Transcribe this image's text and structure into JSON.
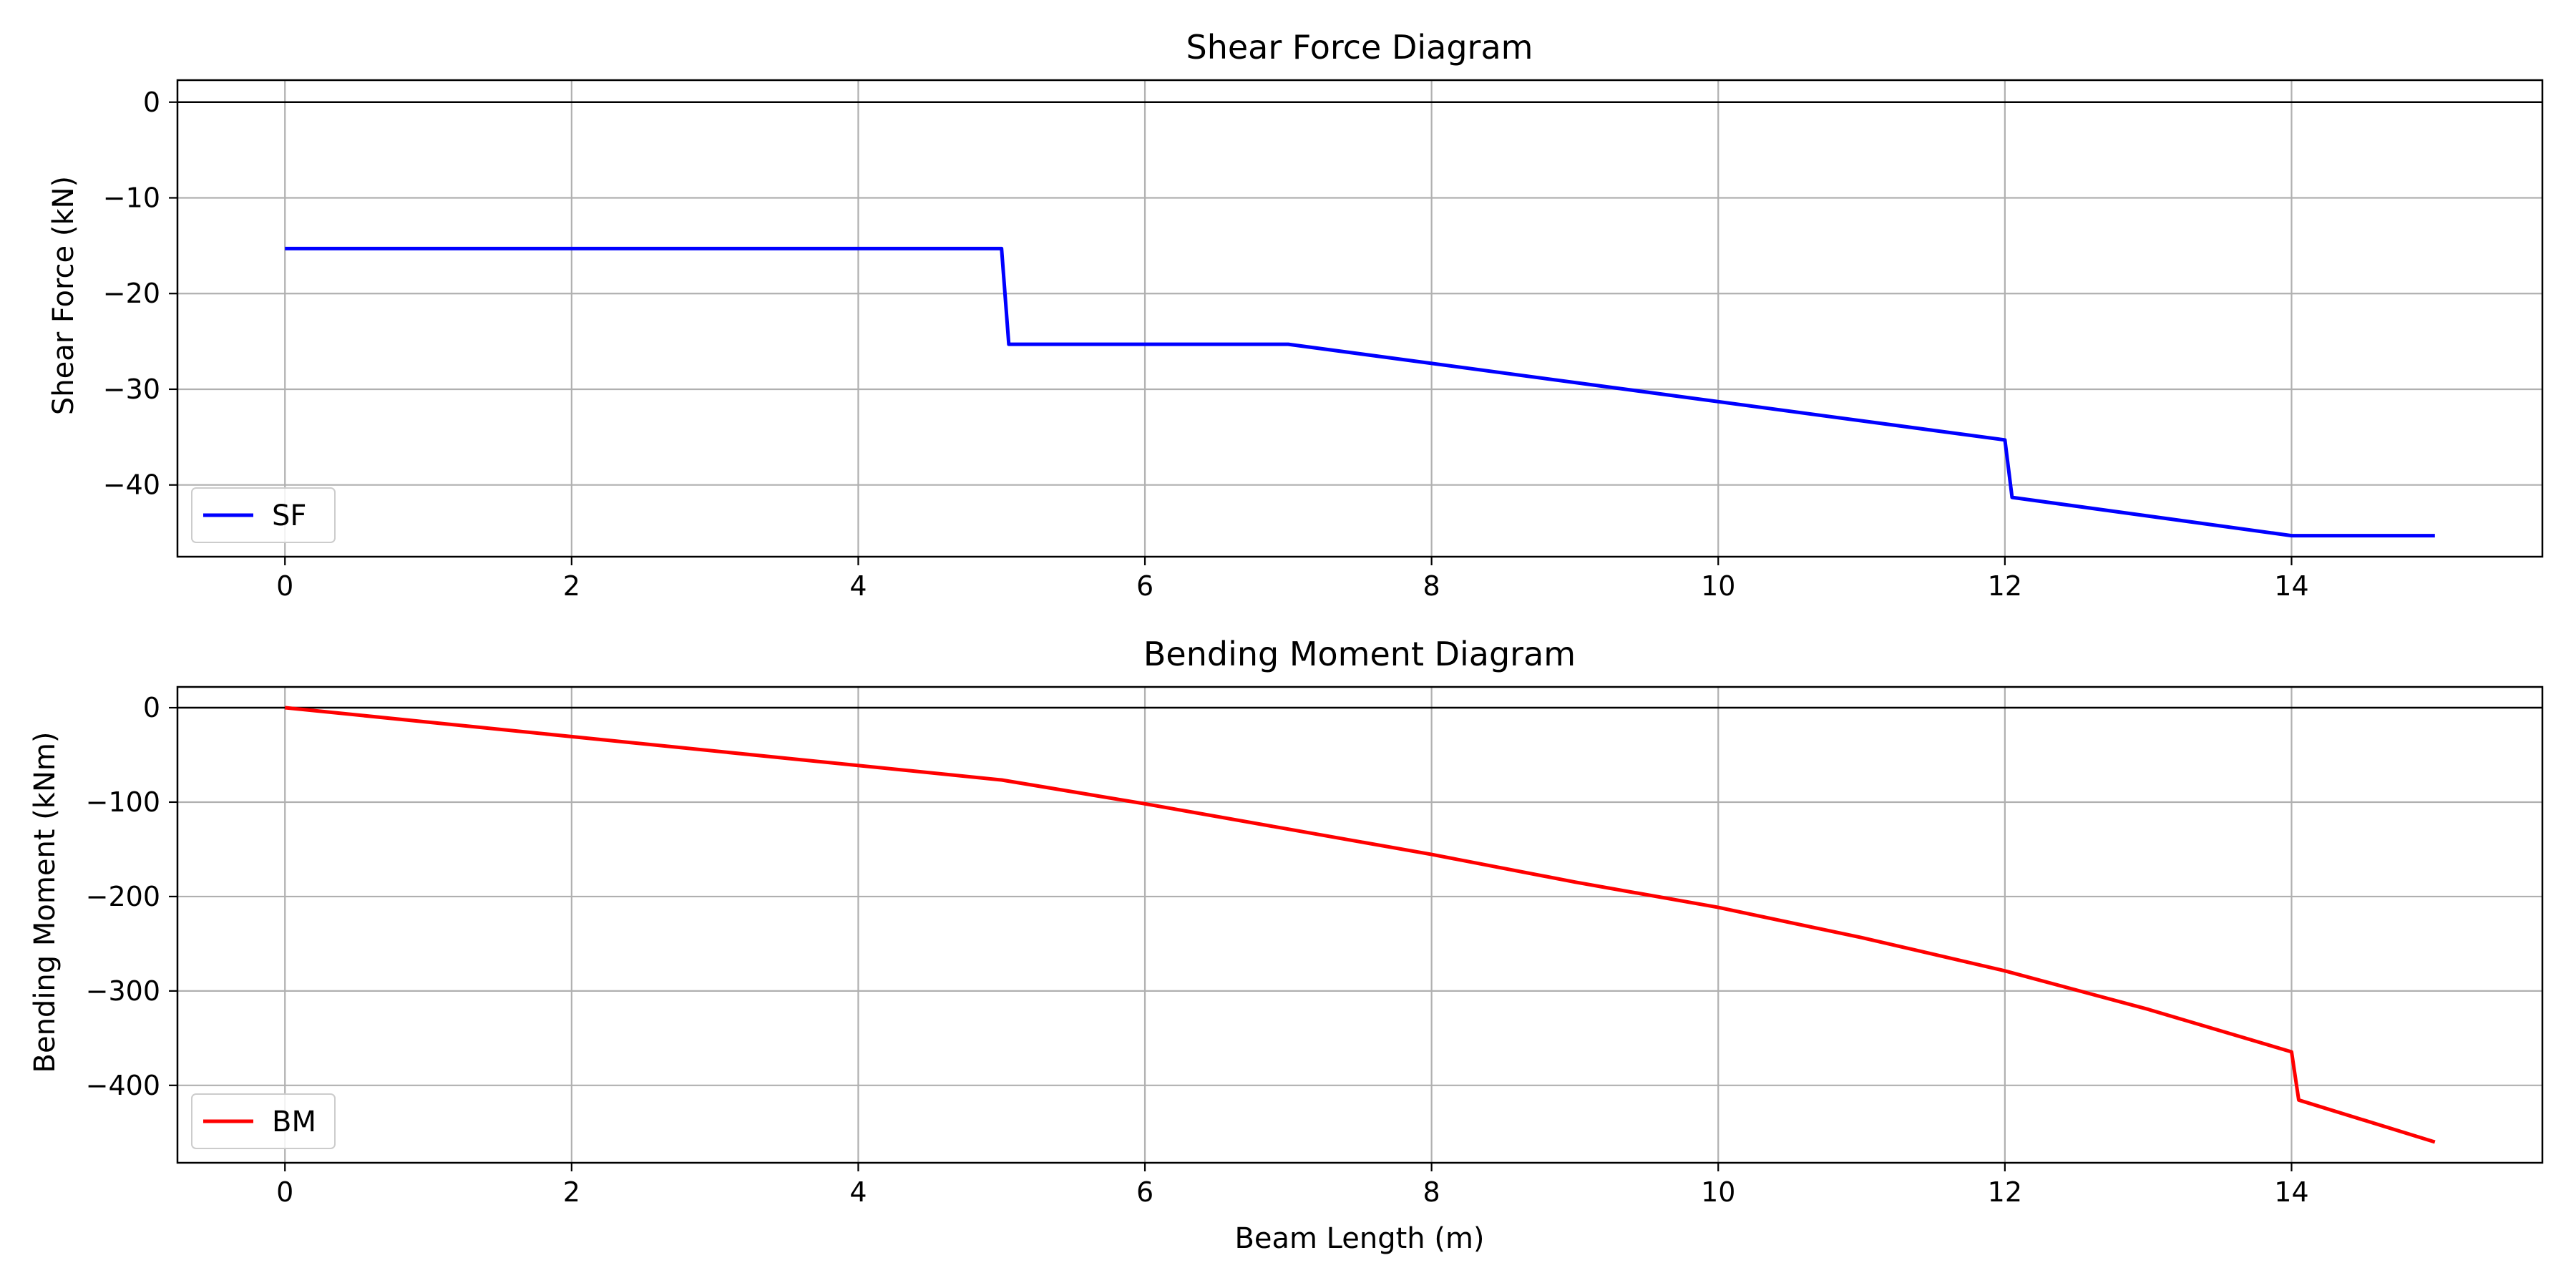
{
  "chart_data": [
    {
      "type": "line",
      "title": "Shear Force Diagram",
      "xlabel": "",
      "ylabel": "Shear Force (kN)",
      "xlim": [
        -0.75,
        15.75
      ],
      "ylim": [
        -47.5,
        2.3
      ],
      "xticks": [
        0,
        2,
        4,
        6,
        8,
        10,
        12,
        14
      ],
      "yticks": [
        0,
        -10,
        -20,
        -30,
        -40
      ],
      "grid": true,
      "zero_line": true,
      "legend_position": "lower-left",
      "series": [
        {
          "name": "SF",
          "color": "#0000ff",
          "x": [
            0,
            5,
            5.05,
            7,
            12,
            12.05,
            14,
            15
          ],
          "y": [
            -15.3,
            -15.3,
            -25.3,
            -25.3,
            -35.3,
            -41.3,
            -45.3,
            -45.3
          ]
        }
      ]
    },
    {
      "type": "line",
      "title": "Bending Moment Diagram",
      "xlabel": "Beam Length (m)",
      "ylabel": "Bending Moment (kNm)",
      "xlim": [
        -0.75,
        15.75
      ],
      "ylim": [
        -482,
        22
      ],
      "xticks": [
        0,
        2,
        4,
        6,
        8,
        10,
        12,
        14
      ],
      "yticks": [
        0,
        -100,
        -200,
        -300,
        -400
      ],
      "grid": true,
      "zero_line": true,
      "legend_position": "lower-left",
      "series": [
        {
          "name": "BM",
          "color": "#ff0000",
          "x": [
            0,
            5,
            6,
            7,
            8,
            9,
            10,
            11,
            12,
            13,
            14,
            14.05,
            15
          ],
          "y": [
            0,
            -76.5,
            -101.8,
            -128.6,
            -155.4,
            -184.7,
            -211.5,
            -243.5,
            -278.7,
            -319.5,
            -364.5,
            -415.5,
            -460
          ]
        }
      ]
    }
  ]
}
